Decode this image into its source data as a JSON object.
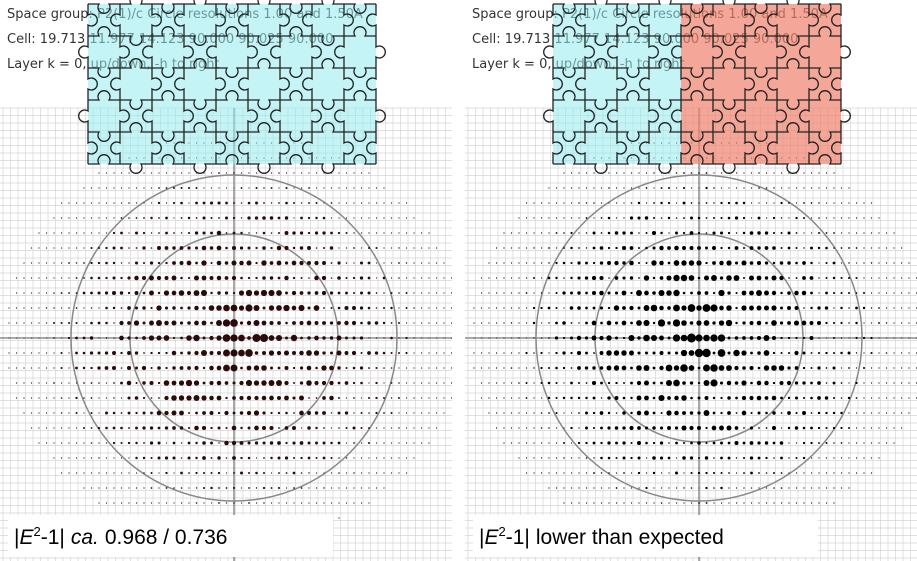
{
  "panels": [
    {
      "header": {
        "line1": "Space group: P2(1)/c   Circle resolutions 1.00 and 1.50A",
        "line2": "Cell: 19.713 11.977 14.123 90.000 90.025 90.000",
        "line3": "Layer  k =   0, up/down, -h to right"
      },
      "caption": {
        "open": "|",
        "symbol": "E",
        "sup": "2",
        "close": "-1|",
        "qualifier": "ca.",
        "text": "0.968 / 0.736"
      }
    },
    {
      "header": {
        "line1": "Space group: P2(1)/c   Circle resolutions 1.00 and 1.50A",
        "line2": "Cell: 19.713 11.977 14.123 90.000 90.025 90.000",
        "line3": "Layer  k =   0, up/down, -h to right"
      },
      "caption": {
        "open": "|",
        "symbol": "E",
        "sup": "2",
        "close": "-1|",
        "text": "lower than expected"
      }
    }
  ]
}
